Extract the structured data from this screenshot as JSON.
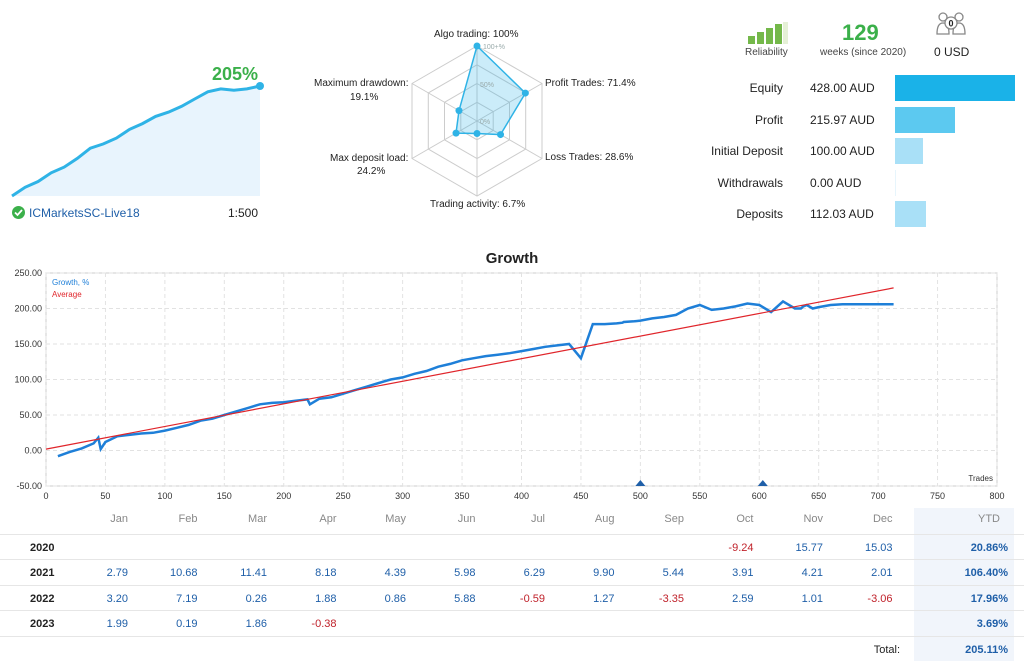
{
  "summary": {
    "growth_pct": "205%",
    "broker": "ICMarketsSC-Live18",
    "leverage": "1:500",
    "mini_growth_curve": [
      0,
      6,
      10,
      16,
      20,
      26,
      33,
      36,
      40,
      46,
      50,
      55,
      58,
      62,
      67,
      72,
      74,
      73,
      74,
      76
    ]
  },
  "radar": {
    "axes": [
      {
        "label": "Algo trading: 100%",
        "value": 100
      },
      {
        "label": "Profit Trades: 71.4%",
        "value": 71.4
      },
      {
        "label": "Loss Trades: 28.6%",
        "value": 28.6
      },
      {
        "label": "Trading activity: 6.7%",
        "value": 6.7
      },
      {
        "label": "Max deposit load:",
        "value2": "24.2%",
        "value": 24.2
      },
      {
        "label": "Maximum drawdown:",
        "value2": "19.1%",
        "value": 19.1
      }
    ],
    "ring_labels": [
      "100+%",
      "50%",
      "0%"
    ]
  },
  "account": {
    "reliability_label": "Reliability",
    "weeks_value": "129",
    "weeks_label": "weeks (since 2020)",
    "usd_value": "0 USD",
    "people_count": "0",
    "reliability_bars": 4,
    "stats": [
      {
        "label": "Equity",
        "value": "428.00 AUD",
        "fraction": 1.0,
        "color": "#1ab2e8"
      },
      {
        "label": "Profit",
        "value": "215.97 AUD",
        "fraction": 0.5,
        "color": "#5cc9f0"
      },
      {
        "label": "Initial Deposit",
        "value": "100.00 AUD",
        "fraction": 0.23,
        "color": "#a9e0f7"
      },
      {
        "label": "Withdrawals",
        "value": "0.00 AUD",
        "fraction": 0.0,
        "color": "#a9e0f7"
      },
      {
        "label": "Deposits",
        "value": "112.03 AUD",
        "fraction": 0.26,
        "color": "#a9e0f7"
      }
    ]
  },
  "chart_data": {
    "type": "line",
    "title": "Growth",
    "xlabel": "Trades",
    "ylabel": "",
    "xlim": [
      0,
      800
    ],
    "ylim": [
      -50,
      250
    ],
    "x_ticks": [
      "0",
      "50",
      "100",
      "150",
      "200",
      "250",
      "300",
      "350",
      "400",
      "450",
      "500",
      "550",
      "600",
      "650",
      "700",
      "750",
      "800"
    ],
    "y_ticks": [
      "-50.00",
      "0.00",
      "50.00",
      "100.00",
      "150.00",
      "200.00",
      "250.00"
    ],
    "grid": true,
    "legend": "top-left",
    "series": [
      {
        "name": "Growth, %",
        "color": "#1e7fd8",
        "x": [
          10,
          20,
          30,
          40,
          44,
          46,
          50,
          60,
          70,
          80,
          90,
          100,
          110,
          120,
          130,
          140,
          150,
          160,
          170,
          180,
          190,
          200,
          210,
          220,
          222,
          230,
          240,
          250,
          260,
          270,
          280,
          290,
          300,
          310,
          320,
          330,
          340,
          350,
          360,
          370,
          380,
          390,
          400,
          410,
          420,
          430,
          440,
          450,
          460,
          470,
          480,
          485,
          486,
          495,
          500,
          510,
          520,
          530,
          540,
          550,
          560,
          570,
          580,
          590,
          600,
          610,
          620,
          630,
          635,
          637,
          640,
          645,
          650,
          660,
          670,
          680,
          690,
          700,
          710,
          713
        ],
        "y": [
          -8,
          -2,
          3,
          10,
          18,
          2,
          12,
          20,
          22,
          24,
          25,
          28,
          32,
          36,
          42,
          45,
          50,
          55,
          60,
          65,
          67,
          68,
          70,
          72,
          65,
          73,
          75,
          80,
          85,
          90,
          95,
          100,
          103,
          108,
          112,
          118,
          122,
          127,
          130,
          133,
          135,
          137,
          140,
          143,
          146,
          148,
          150,
          130,
          178,
          178,
          179,
          180,
          181,
          182,
          183,
          186,
          188,
          191,
          200,
          205,
          198,
          200,
          203,
          207,
          205,
          195,
          210,
          200,
          200,
          203,
          205,
          200,
          202,
          205,
          206,
          206,
          206,
          206,
          206,
          206
        ],
        "markers_at": [
          500,
          603
        ]
      },
      {
        "name": "Average",
        "color": "#e0252b",
        "x": [
          0,
          713
        ],
        "y": [
          2,
          229
        ]
      }
    ]
  },
  "monthly": {
    "months": [
      "Jan",
      "Feb",
      "Mar",
      "Apr",
      "May",
      "Jun",
      "Jul",
      "Aug",
      "Sep",
      "Oct",
      "Nov",
      "Dec"
    ],
    "ytd_header": "YTD",
    "rows": [
      {
        "year": "2020",
        "values": [
          "",
          "",
          "",
          "",
          "",
          "",
          "",
          "",
          "",
          "-9.24",
          "15.77",
          "15.03"
        ],
        "ytd": "20.86%"
      },
      {
        "year": "2021",
        "values": [
          "2.79",
          "10.68",
          "11.41",
          "8.18",
          "4.39",
          "5.98",
          "6.29",
          "9.90",
          "5.44",
          "3.91",
          "4.21",
          "2.01"
        ],
        "ytd": "106.40%"
      },
      {
        "year": "2022",
        "values": [
          "3.20",
          "7.19",
          "0.26",
          "1.88",
          "0.86",
          "5.88",
          "-0.59",
          "1.27",
          "-3.35",
          "2.59",
          "1.01",
          "-3.06"
        ],
        "ytd": "17.96%"
      },
      {
        "year": "2023",
        "values": [
          "1.99",
          "0.19",
          "1.86",
          "-0.38",
          "",
          "",
          "",
          "",
          "",
          "",
          "",
          ""
        ],
        "ytd": "3.69%"
      }
    ],
    "total_label": "Total:",
    "total_value": "205.11%"
  }
}
